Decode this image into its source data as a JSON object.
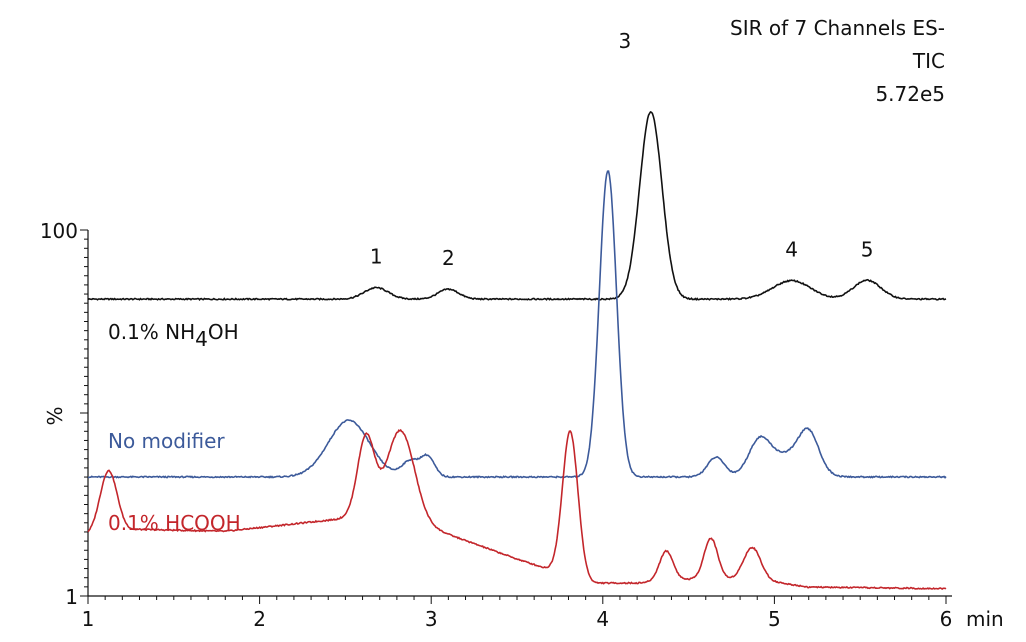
{
  "chart_data": {
    "type": "line",
    "title": "",
    "xlabel": "min",
    "ylabel": "%",
    "xlim": [
      1,
      6
    ],
    "ylim": [
      1,
      100
    ],
    "x_ticks": [
      "1",
      "2",
      "3",
      "4",
      "5",
      "6"
    ],
    "y_ticks": [
      "1",
      "100"
    ],
    "info_lines": [
      "SIR of 7 Channels ES-",
      "TIC",
      "5.72e5"
    ],
    "grid": false,
    "series": [
      {
        "name": "0.1% NH",
        "name_sub": "4",
        "name_suffix": "OH",
        "color": "#111111",
        "baseline": 81.3,
        "peaks": [
          {
            "label": "1",
            "x": 2.68,
            "y": 84.4,
            "width": 0.07
          },
          {
            "label": "2",
            "x": 3.1,
            "y": 84.0,
            "width": 0.06
          },
          {
            "label": "3",
            "x": 4.28,
            "y": 132.0,
            "width": 0.065
          },
          {
            "label": "4",
            "x": 5.1,
            "y": 86.3,
            "width": 0.11
          },
          {
            "label": "5",
            "x": 5.54,
            "y": 86.4,
            "width": 0.08
          }
        ]
      },
      {
        "name": "No modifier",
        "color": "#3c5a9a",
        "baseline": 33.2,
        "peaks": [
          {
            "label": "",
            "x": 2.52,
            "y": 48.5,
            "width": 0.12
          },
          {
            "label": "",
            "x": 2.88,
            "y": 37.5,
            "width": 0.05
          },
          {
            "label": "",
            "x": 2.98,
            "y": 38.5,
            "width": 0.04
          },
          {
            "label": "",
            "x": 4.03,
            "y": 116.0,
            "width": 0.05
          },
          {
            "label": "",
            "x": 4.66,
            "y": 38.5,
            "width": 0.05
          },
          {
            "label": "",
            "x": 4.91,
            "y": 41.0,
            "width": 0.06
          },
          {
            "label": "",
            "x": 5.05,
            "y": 39.0,
            "width": 0.12
          },
          {
            "label": "",
            "x": 5.2,
            "y": 43.5,
            "width": 0.06
          }
        ]
      },
      {
        "name": "0.1% HCOOH",
        "color": "#c3262b",
        "baseline": 3.4,
        "peaks": [
          {
            "label": "",
            "x": 1.12,
            "y": 20.2,
            "width": 0.05
          },
          {
            "label": "",
            "x": 2.62,
            "y": 25.5,
            "width": 0.05
          },
          {
            "label": "",
            "x": 2.82,
            "y": 28.0,
            "width": 0.08
          },
          {
            "label": "",
            "x": 3.81,
            "y": 42.5,
            "width": 0.045
          },
          {
            "label": "",
            "x": 4.37,
            "y": 11.5,
            "width": 0.04
          },
          {
            "label": "",
            "x": 4.63,
            "y": 14.5,
            "width": 0.04
          },
          {
            "label": "",
            "x": 4.87,
            "y": 12.0,
            "width": 0.05
          }
        ],
        "hump": [
          [
            1.0,
            17.5
          ],
          [
            1.3,
            19.0
          ],
          [
            1.8,
            18.5
          ],
          [
            2.2,
            20.5
          ],
          [
            2.5,
            22.0
          ],
          [
            2.9,
            21.0
          ],
          [
            3.2,
            16.0
          ],
          [
            3.5,
            11.0
          ],
          [
            3.7,
            8.0
          ],
          [
            3.95,
            4.5
          ],
          [
            4.2,
            4.5
          ],
          [
            4.5,
            5.5
          ],
          [
            4.9,
            5.5
          ],
          [
            5.2,
            3.4
          ],
          [
            6.0,
            3.0
          ]
        ]
      }
    ]
  }
}
